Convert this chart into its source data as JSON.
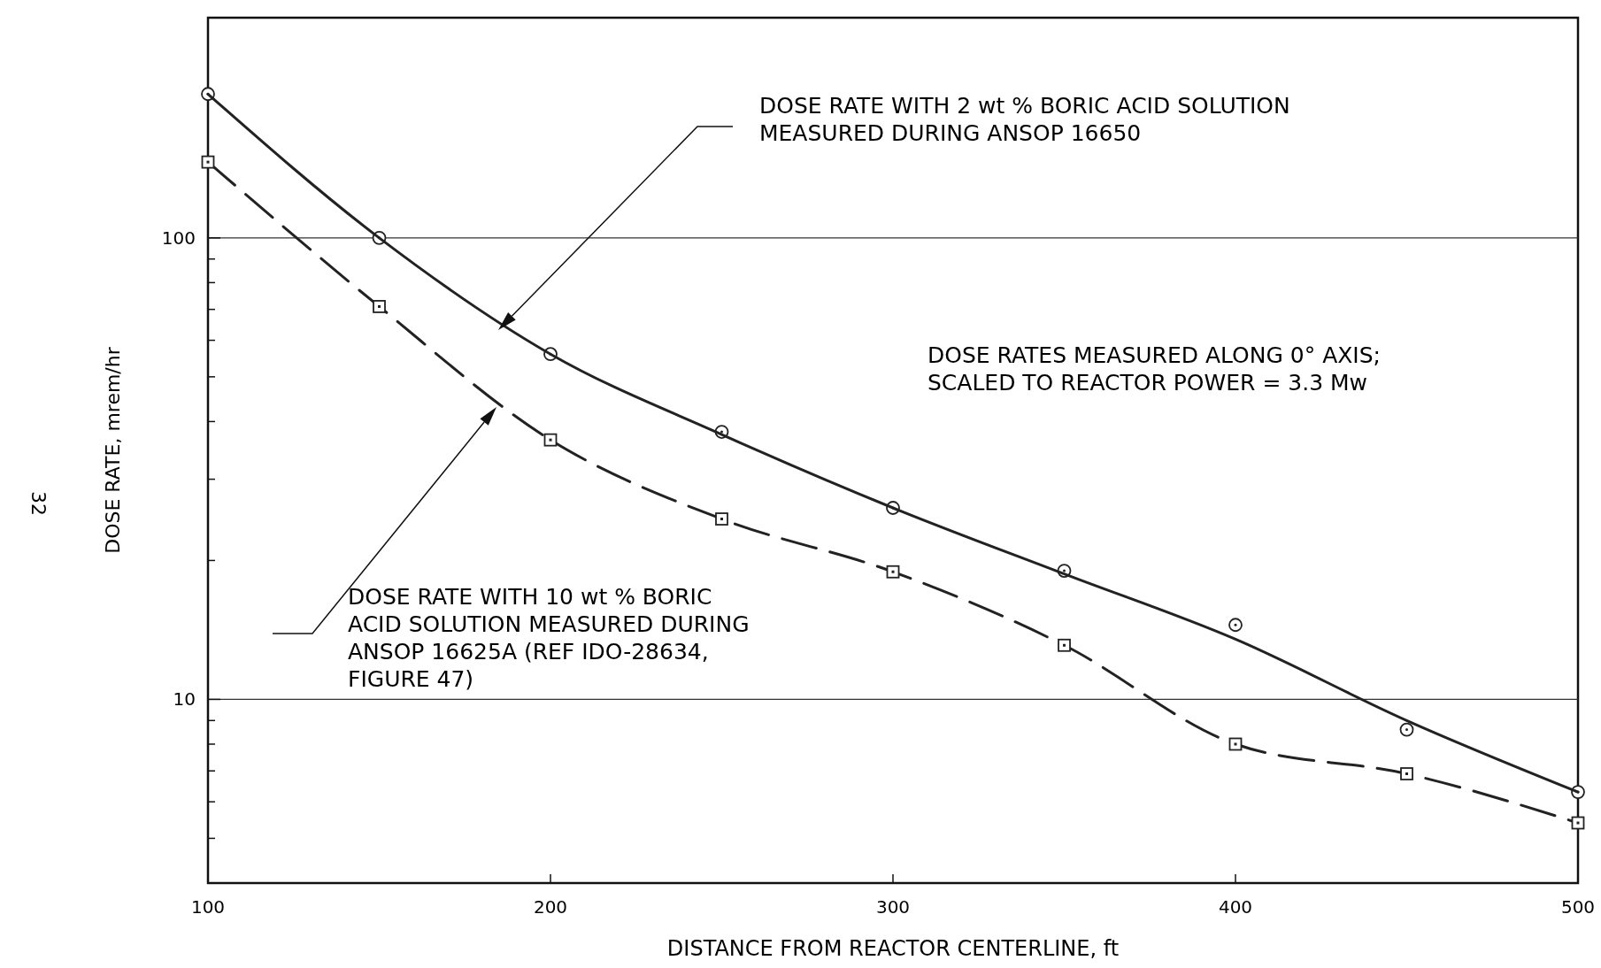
{
  "chart_data": {
    "type": "line",
    "xlabel": "DISTANCE FROM REACTOR CENTERLINE, ft",
    "ylabel": "DOSE RATE, mrem/hr",
    "log": "y",
    "grid": "y",
    "xlim": [
      100,
      500
    ],
    "ylim": [
      4,
      300
    ],
    "xticks": [
      100,
      200,
      300,
      400,
      500
    ],
    "yticks": [
      {
        "value": 4,
        "label": null
      },
      {
        "value": 5,
        "label": null
      },
      {
        "value": 6,
        "label": null
      },
      {
        "value": 7,
        "label": null
      },
      {
        "value": 8,
        "label": null
      },
      {
        "value": 9,
        "label": null
      },
      10,
      {
        "value": 20,
        "label": null
      },
      {
        "value": 30,
        "label": null
      },
      {
        "value": 40,
        "label": null
      },
      {
        "value": 50,
        "label": null
      },
      {
        "value": 60,
        "label": null
      },
      {
        "value": 70,
        "label": null
      },
      {
        "value": 80,
        "label": null
      },
      {
        "value": 90,
        "label": null
      },
      100,
      {
        "value": 200,
        "label": null
      },
      {
        "value": 300,
        "label": null
      }
    ],
    "series": [
      {
        "type": "scatter",
        "color": "#222222",
        "marker": "circle",
        "x": [
          100,
          150,
          200,
          250,
          300,
          350,
          400,
          450,
          500
        ],
        "values": [
          205,
          100,
          56,
          38,
          26,
          19,
          14.5,
          8.6,
          6.3
        ]
      },
      {
        "color": "#222222",
        "marker": "none",
        "line_style": "solid",
        "x": [
          100,
          150,
          200,
          250,
          300,
          350,
          400,
          450,
          500
        ],
        "values": [
          205,
          100,
          56,
          37.5,
          26,
          18.7,
          13.5,
          9,
          6.3
        ]
      },
      {
        "color": "#222222",
        "marker": "square",
        "line_style": "dashed",
        "x": [
          100,
          150,
          200,
          250,
          300,
          350,
          400,
          450,
          500
        ],
        "values": [
          146,
          71,
          36.5,
          24.6,
          18.9,
          13.1,
          8,
          6.9,
          5.4
        ]
      }
    ],
    "annotations": [
      "DOSE RATE WITH 2 wt % BORIC ACID SOLUTION\nMEASURED DURING ANSOP 16650",
      "DOSE RATE WITH 10 wt % BORIC\nACID SOLUTION MEASURED DURING\nANSOP 16625A (REF IDO-28634,\nFIGURE 47)",
      "DOSE RATES MEASURED ALONG 0° AXIS;\nSCALED TO REACTOR POWER = 3.3 Mw",
      "32"
    ]
  }
}
